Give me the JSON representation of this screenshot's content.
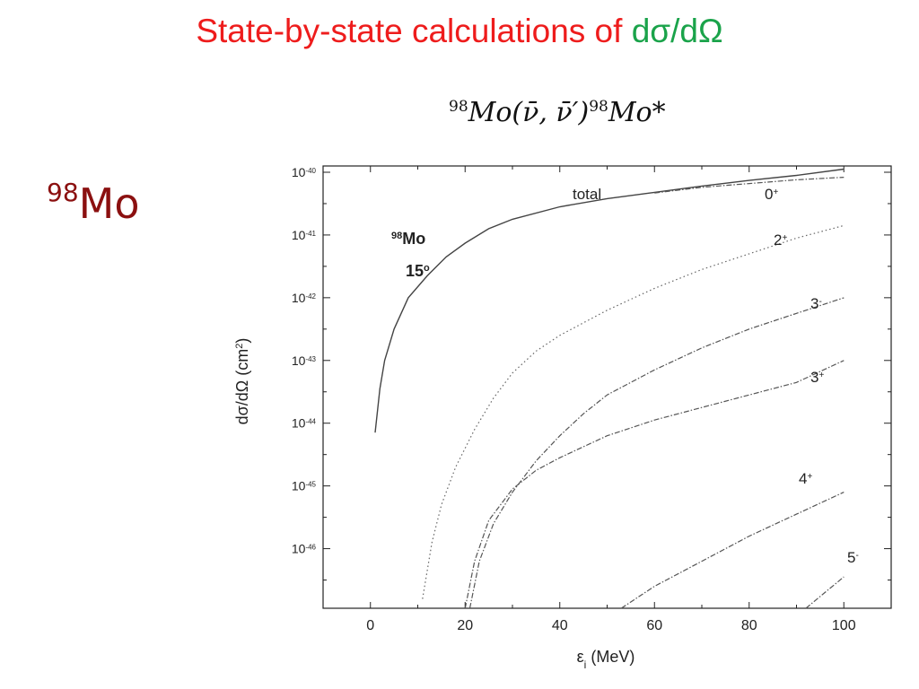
{
  "slide": {
    "title_main": "State-by-state calculations of ",
    "title_highlight": "dσ/dΩ",
    "side_label_sup": "98",
    "side_label_base": "Mo"
  },
  "chart_data": {
    "type": "line",
    "title": {
      "pre_sup": "98",
      "main": "Mo(ν̄, ν̄′)",
      "mid_sup": "98",
      "post": "Mo*"
    },
    "xlabel": "εi (MeV)",
    "ylabel": "dσ/dΩ (cm2)",
    "xlim": [
      -10,
      110
    ],
    "ylim_exp": [
      -46.95,
      -39.9
    ],
    "log_y": true,
    "x_ticks": [
      "0",
      "20",
      "40",
      "60",
      "80",
      "100"
    ],
    "y_ticks": [
      {
        "base": "10",
        "exp": "-40"
      },
      {
        "base": "10",
        "exp": "-41"
      },
      {
        "base": "10",
        "exp": "-42"
      },
      {
        "base": "10",
        "exp": "-43"
      },
      {
        "base": "10",
        "exp": "-44"
      },
      {
        "base": "10",
        "exp": "-45"
      },
      {
        "base": "10",
        "exp": "-46"
      }
    ],
    "inside_label": {
      "sup": "98",
      "nucleus": "Mo",
      "angle": "15",
      "degree": "o"
    },
    "series": [
      {
        "name": "total",
        "label_base": "total",
        "label_sup": "",
        "style": "solid",
        "points": [
          [
            1,
            -44.15
          ],
          [
            2,
            -43.45
          ],
          [
            3,
            -43.0
          ],
          [
            5,
            -42.5
          ],
          [
            8,
            -42.0
          ],
          [
            12,
            -41.65
          ],
          [
            16,
            -41.35
          ],
          [
            20,
            -41.13
          ],
          [
            25,
            -40.9
          ],
          [
            30,
            -40.75
          ],
          [
            40,
            -40.55
          ],
          [
            50,
            -40.42
          ],
          [
            60,
            -40.32
          ],
          [
            70,
            -40.22
          ],
          [
            80,
            -40.13
          ],
          [
            90,
            -40.05
          ],
          [
            100,
            -39.95
          ]
        ]
      },
      {
        "name": "0+",
        "label_base": "0",
        "label_sup": "+",
        "style": "dashdot",
        "points": [
          [
            60,
            -40.33
          ],
          [
            70,
            -40.24
          ],
          [
            80,
            -40.18
          ],
          [
            90,
            -40.12
          ],
          [
            100,
            -40.08
          ]
        ]
      },
      {
        "name": "2+",
        "label_base": "2",
        "label_sup": "+",
        "style": "dotted",
        "points": [
          [
            11,
            -46.8
          ],
          [
            13,
            -45.9
          ],
          [
            15,
            -45.3
          ],
          [
            18,
            -44.7
          ],
          [
            22,
            -44.1
          ],
          [
            26,
            -43.6
          ],
          [
            30,
            -43.2
          ],
          [
            35,
            -42.85
          ],
          [
            40,
            -42.6
          ],
          [
            50,
            -42.2
          ],
          [
            60,
            -41.85
          ],
          [
            70,
            -41.55
          ],
          [
            80,
            -41.3
          ],
          [
            90,
            -41.05
          ],
          [
            100,
            -40.85
          ]
        ]
      },
      {
        "name": "3-",
        "label_base": "3",
        "label_sup": "-",
        "style": "dashdot",
        "points": [
          [
            21,
            -46.95
          ],
          [
            23,
            -46.2
          ],
          [
            26,
            -45.6
          ],
          [
            30,
            -45.1
          ],
          [
            35,
            -44.6
          ],
          [
            40,
            -44.2
          ],
          [
            45,
            -43.85
          ],
          [
            50,
            -43.55
          ],
          [
            60,
            -43.15
          ],
          [
            70,
            -42.8
          ],
          [
            80,
            -42.5
          ],
          [
            90,
            -42.25
          ],
          [
            100,
            -42.0
          ]
        ]
      },
      {
        "name": "3+",
        "label_base": "3",
        "label_sup": "+",
        "style": "dashdot",
        "points": [
          [
            20,
            -46.95
          ],
          [
            22,
            -46.2
          ],
          [
            25,
            -45.55
          ],
          [
            30,
            -45.05
          ],
          [
            35,
            -44.75
          ],
          [
            40,
            -44.55
          ],
          [
            50,
            -44.2
          ],
          [
            60,
            -43.95
          ],
          [
            70,
            -43.75
          ],
          [
            80,
            -43.55
          ],
          [
            90,
            -43.35
          ],
          [
            100,
            -43.0
          ]
        ]
      },
      {
        "name": "4+",
        "label_base": "4",
        "label_sup": "+",
        "style": "dashdot",
        "points": [
          [
            53,
            -46.95
          ],
          [
            60,
            -46.6
          ],
          [
            70,
            -46.2
          ],
          [
            80,
            -45.8
          ],
          [
            90,
            -45.45
          ],
          [
            100,
            -45.1
          ]
        ]
      },
      {
        "name": "5-",
        "label_base": "5",
        "label_sup": "-",
        "style": "dashdot",
        "points": [
          [
            92,
            -46.95
          ],
          [
            96,
            -46.7
          ],
          [
            100,
            -46.45
          ]
        ]
      }
    ]
  }
}
